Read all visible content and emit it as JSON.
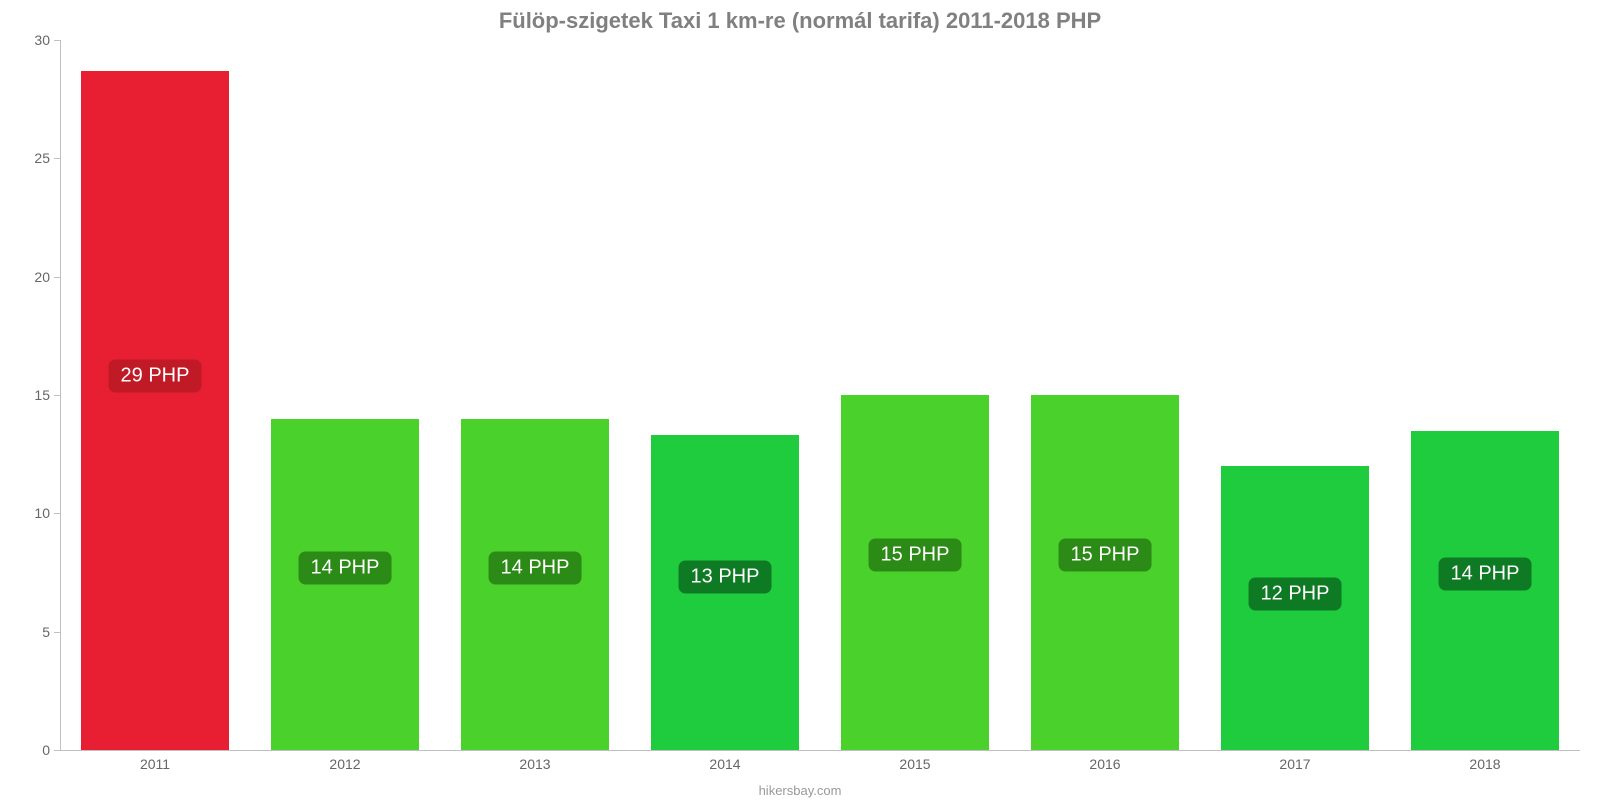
{
  "chart": {
    "type": "bar",
    "title": "Fülöp-szigetek Taxi 1 km-re (normál tarifa) 2011-2018 PHP",
    "title_fontsize": 22,
    "title_color": "#808080",
    "background_color": "#ffffff",
    "attribution": "hikersbay.com",
    "attribution_fontsize": 13,
    "attribution_color": "#999999",
    "axis_line_color": "#c0c0c0",
    "ylim": [
      0,
      30
    ],
    "ytick_step": 5,
    "ytick_fontsize": 14,
    "ytick_color": "#666666",
    "xtick_fontsize": 14,
    "xtick_color": "#666666",
    "bar_width_ratio": 0.78,
    "bar_label_fontsize": 20,
    "categories": [
      "2011",
      "2012",
      "2013",
      "2014",
      "2015",
      "2016",
      "2017",
      "2018"
    ],
    "values": [
      28.7,
      14.0,
      14.0,
      13.3,
      15.0,
      15.0,
      12.0,
      13.5
    ],
    "bar_labels": [
      "29 PHP",
      "14 PHP",
      "14 PHP",
      "13 PHP",
      "15 PHP",
      "15 PHP",
      "12 PHP",
      "14 PHP"
    ],
    "bar_colors": [
      "#e81e33",
      "#4bd12c",
      "#4bd12c",
      "#1fcc3e",
      "#4bd12c",
      "#4bd12c",
      "#1fcc3e",
      "#1fcc3e"
    ],
    "bar_label_bg_colors": [
      "#c01a26",
      "#2c8a17",
      "#2c8a17",
      "#0f7a24",
      "#2c8a17",
      "#2c8a17",
      "#0f7a24",
      "#0f7a24"
    ]
  }
}
